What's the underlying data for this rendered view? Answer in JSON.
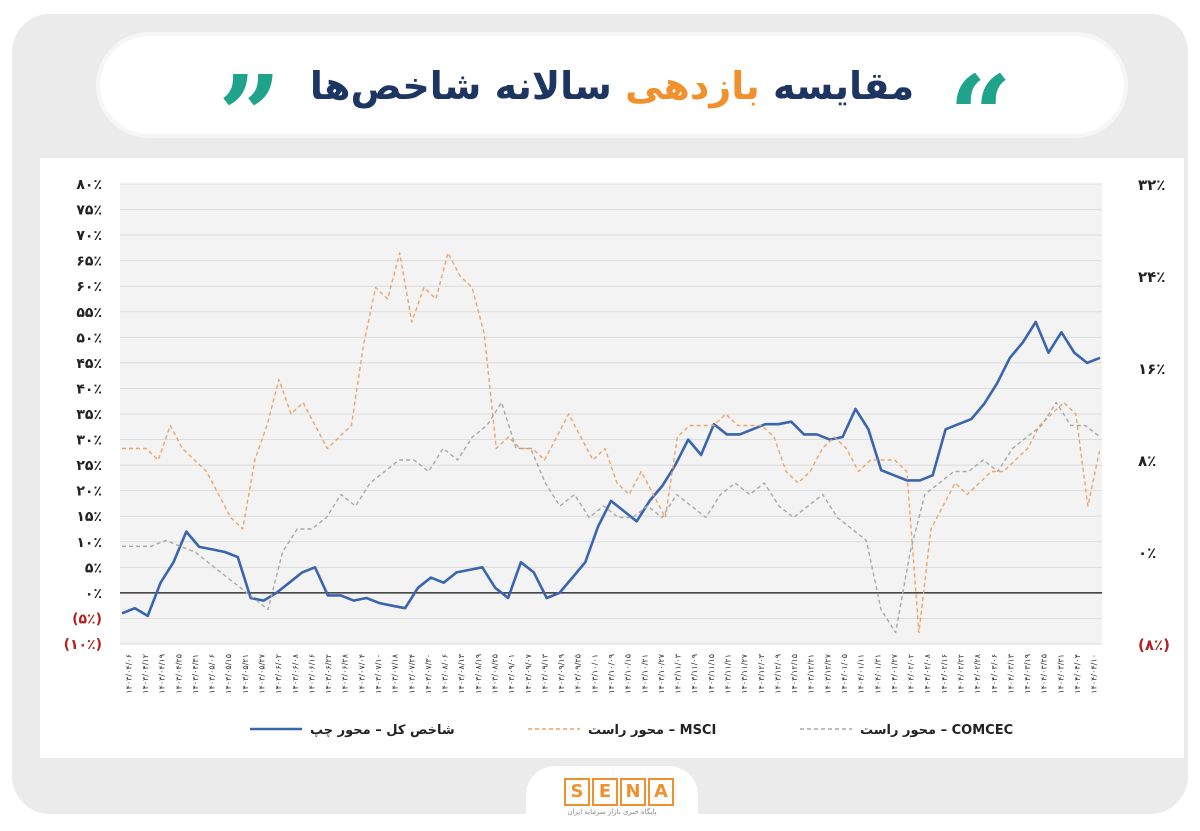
{
  "header": {
    "title_part1": "مقایسه ",
    "title_highlight": "بازدهی",
    "title_part2": " سالانه شاخص‌ها",
    "quote_open": "“",
    "quote_close": "”"
  },
  "logo": {
    "letters": [
      "S",
      "E",
      "N",
      "A"
    ],
    "subtitle": "پایگاه خبری بازار سرمایه ایران"
  },
  "colors": {
    "main_index": "#3a64ad",
    "msci": "#eda46a",
    "comcec": "#a8a8a8",
    "negative_tick": "#b22222",
    "title": "#1d3562",
    "title_highlight": "#f0912d",
    "quote": "#1fa38a"
  },
  "chart_data": {
    "type": "line",
    "left_axis": {
      "range": [
        -10,
        80
      ],
      "ticks": [
        "(۱۰٪)",
        "(۵٪)",
        "۰٪",
        "۵٪",
        "۱۰٪",
        "۱۵٪",
        "۲۰٪",
        "۲۵٪",
        "۳۰٪",
        "۳۵٪",
        "۴۰٪",
        "۴۵٪",
        "۵۰٪",
        "۵۵٪",
        "۶۰٪",
        "۶۵٪",
        "۷۰٪",
        "۷۵٪",
        "۸۰٪"
      ]
    },
    "right_axis": {
      "range": [
        -8,
        32
      ],
      "ticks": [
        "(۸٪)",
        "۰٪",
        "۸٪",
        "۱۶٪",
        "۲۴٪",
        "۳۲٪"
      ],
      "tick_values": [
        -8,
        0,
        8,
        16,
        24,
        32
      ]
    },
    "grid": true,
    "x_labels": [
      "۱۴۰۳/۰۴/۰۶",
      "۱۴۰۳/۰۴/۱۲",
      "۱۴۰۳/۰۴/۱۹",
      "۱۴۰۳/۰۴/۲۵",
      "۱۴۰۳/۰۴/۳۱",
      "۱۴۰۳/۰۵/۰۶",
      "۱۴۰۳/۰۵/۱۵",
      "۱۴۰۳/۰۵/۲۱",
      "۱۴۰۳/۰۵/۲۷",
      "۱۴۰۳/۰۶/۰۲",
      "۱۴۰۳/۰۶/۰۸",
      "۱۴۰۳/۰۶/۱۶",
      "۱۴۰۳/۰۶/۲۲",
      "۱۴۰۳/۰۶/۲۸",
      "۱۴۰۳/۰۷/۰۴",
      "۱۴۰۳/۰۷/۱۰",
      "۱۴۰۳/۰۷/۱۸",
      "۱۴۰۳/۰۷/۲۴",
      "۱۴۰۳/۰۷/۳۰",
      "۱۴۰۳/۰۸/۰۶",
      "۱۴۰۳/۰۸/۱۳",
      "۱۴۰۳/۰۸/۱۹",
      "۱۴۰۳/۰۸/۲۵",
      "۱۴۰۳/۰۹/۰۱",
      "۱۴۰۳/۰۹/۰۷",
      "۱۴۰۳/۰۹/۱۳",
      "۱۴۰۳/۰۹/۱۹",
      "۱۴۰۳/۰۹/۲۵",
      "۱۴۰۳/۱۰/۰۱",
      "۱۴۰۳/۱۰/۰۹",
      "۱۴۰۳/۱۰/۱۵",
      "۱۴۰۳/۱۰/۲۱",
      "۱۴۰۳/۱۰/۲۷",
      "۱۴۰۳/۱۱/۰۳",
      "۱۴۰۳/۱۱/۰۹",
      "۱۴۰۳/۱۱/۱۵",
      "۱۴۰۳/۱۱/۲۱",
      "۱۴۰۳/۱۱/۲۷",
      "۱۴۰۳/۱۲/۰۳",
      "۱۴۰۳/۱۲/۰۹",
      "۱۴۰۳/۱۲/۱۵",
      "۱۴۰۳/۱۲/۲۱",
      "۱۴۰۳/۱۲/۲۷",
      "۱۴۰۴/۰۱/۰۵",
      "۱۴۰۴/۰۱/۱۱",
      "۱۴۰۴/۰۱/۲۱",
      "۱۴۰۴/۰۱/۲۷",
      "۱۴۰۴/۰۲/۰۲",
      "۱۴۰۴/۰۲/۰۸",
      "۱۴۰۴/۰۲/۱۶",
      "۱۴۰۴/۰۲/۲۲",
      "۱۴۰۴/۰۲/۲۸",
      "۱۴۰۴/۰۳/۰۶",
      "۱۴۰۴/۰۳/۱۳",
      "۱۴۰۴/۰۳/۱۹",
      "۱۴۰۴/۰۳/۲۵",
      "۱۴۰۴/۰۳/۳۱",
      "۱۴۰۴/۰۴/۰۴",
      "۱۴۰۴/۰۴/۱۰"
    ],
    "series": [
      {
        "name": "شاخص کل – محور چپ",
        "axis": "left",
        "values": [
          -4,
          -3,
          -4.5,
          2,
          6,
          12,
          9,
          8.5,
          8,
          7,
          -1,
          -1.5,
          0,
          2,
          4,
          5,
          -0.5,
          -0.5,
          -1.5,
          -1,
          -2,
          -2.5,
          -3,
          1,
          3,
          2,
          4,
          4.5,
          5,
          1,
          -1,
          6,
          4,
          -1,
          0,
          3,
          6,
          13,
          18,
          16,
          14,
          18,
          21,
          25,
          30,
          27,
          33,
          31,
          31,
          32,
          33,
          33,
          33.5,
          31,
          31,
          30,
          30.5,
          36,
          32,
          24,
          23,
          22,
          22,
          23,
          32,
          33,
          34,
          37,
          41,
          46,
          49,
          53,
          47,
          51,
          47,
          45,
          46
        ],
        "y_values_note_unused": ""
      },
      {
        "name": "MSCI – محور راست",
        "axis": "right",
        "values": [
          9,
          9,
          9,
          8,
          11,
          9,
          8,
          7,
          5,
          3,
          2,
          8,
          11,
          15,
          12,
          13,
          11,
          9,
          10,
          11,
          18,
          23,
          22,
          26,
          20,
          23,
          22,
          26,
          24,
          23,
          19,
          9,
          10,
          9,
          9,
          8,
          10,
          12,
          10,
          8,
          9,
          6,
          5,
          7,
          5,
          3,
          10,
          11,
          11,
          11,
          12,
          11,
          11,
          11,
          10,
          7,
          6,
          7,
          9,
          10,
          9,
          7,
          8,
          8,
          8,
          7,
          -7,
          2,
          4,
          6,
          5,
          6,
          7,
          7,
          8,
          9,
          11,
          12,
          13,
          12,
          4,
          9
        ]
      },
      {
        "name": "COMCEC – محور راست",
        "axis": "right",
        "values": [
          0.5,
          0.5,
          0.5,
          1,
          0.5,
          0,
          -1,
          -2,
          -3,
          -4,
          -5,
          0,
          2,
          2,
          3,
          5,
          4,
          6,
          7,
          8,
          8,
          7,
          9,
          8,
          10,
          11,
          13,
          9,
          9,
          6,
          4,
          5,
          3,
          4,
          3,
          3,
          4,
          3,
          5,
          4,
          3,
          5,
          6,
          5,
          6,
          4,
          3,
          4,
          5,
          3,
          2,
          1,
          -5,
          -7,
          0,
          5,
          6,
          7,
          7,
          8,
          7,
          9,
          10,
          11,
          13,
          11,
          11,
          10
        ]
      }
    ],
    "legend": "bottom"
  },
  "legend": {
    "main_index": "شاخص کل – محور چپ",
    "msci": "محور راست – MSCI",
    "comcec": "محور راست – COMCEC"
  }
}
